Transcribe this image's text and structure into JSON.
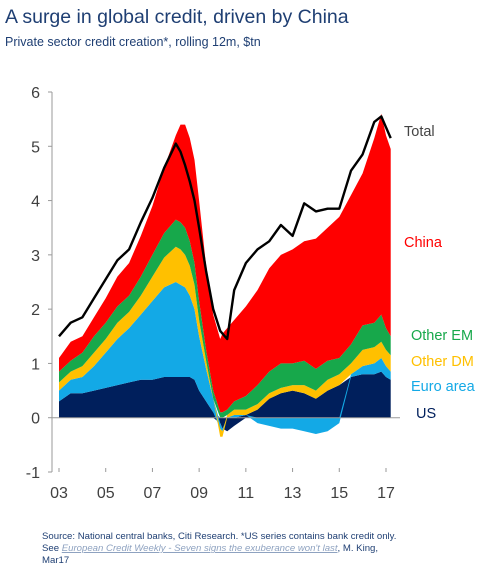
{
  "title": "A surge in global credit, driven by China",
  "subtitle": "Private sector credit creation*, rolling 12m, $tn",
  "source": {
    "line1": "Source: National central banks, Citi Research. *US series contains bank credit only.",
    "see_prefix": "See ",
    "link_text": "European Credit Weekly - Seven signs the exuberance won't last",
    "after_link": ", M. King,",
    "line3": "Mar17"
  },
  "colors": {
    "US": "#001f5c",
    "Euro area": "#13a9e6",
    "Other DM": "#ffc000",
    "Other EM": "#17a84b",
    "China": "#ff0000",
    "Total": "#000000",
    "axis_text": "#404040"
  },
  "chart_data": {
    "type": "area",
    "stacked": true,
    "title": "A surge in global credit, driven by China",
    "subtitle": "Private sector credit creation*, rolling 12m, $tn",
    "xlabel": "",
    "ylabel": "",
    "ylim": [
      -1,
      6
    ],
    "yticks": [
      -1,
      0,
      1,
      2,
      3,
      4,
      5,
      6
    ],
    "xlim": [
      2002.7,
      2017.6
    ],
    "xticks": [
      2003,
      2005,
      2007,
      2009,
      2011,
      2013,
      2015,
      2017
    ],
    "xtick_labels": [
      "03",
      "05",
      "07",
      "09",
      "11",
      "13",
      "15",
      "17"
    ],
    "grid": false,
    "legend": "right-side labels",
    "x": [
      2003.0,
      2003.5,
      2004.0,
      2004.5,
      2005.0,
      2005.5,
      2006.0,
      2006.5,
      2007.0,
      2007.5,
      2008.0,
      2008.2,
      2008.4,
      2008.6,
      2008.8,
      2009.0,
      2009.3,
      2009.6,
      2009.9,
      2010.0,
      2010.2,
      2010.5,
      2011.0,
      2011.5,
      2012.0,
      2012.5,
      2013.0,
      2013.5,
      2014.0,
      2014.5,
      2015.0,
      2015.5,
      2016.0,
      2016.5,
      2016.8,
      2017.0,
      2017.2
    ],
    "series": [
      {
        "name": "US",
        "values": [
          0.3,
          0.45,
          0.45,
          0.5,
          0.55,
          0.6,
          0.65,
          0.7,
          0.7,
          0.75,
          0.75,
          0.75,
          0.75,
          0.75,
          0.7,
          0.5,
          0.3,
          0.1,
          -0.1,
          -0.2,
          -0.25,
          -0.15,
          0.05,
          0.15,
          0.35,
          0.45,
          0.5,
          0.45,
          0.35,
          0.5,
          0.6,
          0.75,
          0.8,
          0.8,
          0.85,
          0.75,
          0.7
        ]
      },
      {
        "name": "Euro area",
        "values": [
          0.2,
          0.25,
          0.3,
          0.45,
          0.65,
          0.85,
          1.0,
          1.2,
          1.45,
          1.65,
          1.75,
          1.7,
          1.65,
          1.5,
          1.3,
          1.0,
          0.6,
          0.25,
          -0.1,
          -0.05,
          0.0,
          0.05,
          0.0,
          -0.1,
          -0.15,
          -0.2,
          -0.2,
          -0.25,
          -0.3,
          -0.25,
          -0.1,
          0.05,
          0.15,
          0.2,
          0.25,
          0.2,
          0.15
        ]
      },
      {
        "name": "Other DM",
        "values": [
          0.15,
          0.15,
          0.2,
          0.25,
          0.25,
          0.3,
          0.3,
          0.35,
          0.45,
          0.55,
          0.65,
          0.65,
          0.6,
          0.55,
          0.45,
          0.3,
          0.15,
          0.0,
          -0.15,
          -0.1,
          0.05,
          0.1,
          0.1,
          0.1,
          0.1,
          0.1,
          0.1,
          0.15,
          0.15,
          0.2,
          0.2,
          0.2,
          0.3,
          0.3,
          0.3,
          0.3,
          0.3
        ]
      },
      {
        "name": "Other EM",
        "values": [
          0.2,
          0.2,
          0.25,
          0.3,
          0.3,
          0.3,
          0.3,
          0.35,
          0.4,
          0.45,
          0.5,
          0.5,
          0.5,
          0.45,
          0.4,
          0.35,
          0.2,
          0.15,
          0.1,
          0.1,
          0.1,
          0.15,
          0.25,
          0.35,
          0.4,
          0.45,
          0.4,
          0.45,
          0.4,
          0.35,
          0.3,
          0.35,
          0.45,
          0.45,
          0.5,
          0.4,
          0.35
        ]
      },
      {
        "name": "China",
        "values": [
          0.25,
          0.35,
          0.3,
          0.35,
          0.45,
          0.55,
          0.6,
          0.75,
          0.9,
          1.2,
          1.55,
          1.8,
          1.9,
          1.9,
          1.9,
          1.85,
          1.55,
          1.4,
          1.35,
          1.45,
          1.5,
          1.5,
          1.65,
          1.75,
          1.9,
          2.0,
          2.1,
          2.2,
          2.4,
          2.45,
          2.6,
          2.75,
          2.8,
          3.4,
          3.7,
          3.55,
          3.45
        ]
      },
      {
        "name": "Total",
        "type": "line",
        "values": [
          1.5,
          1.75,
          1.85,
          2.2,
          2.55,
          2.9,
          3.1,
          3.6,
          4.05,
          4.6,
          5.05,
          4.9,
          4.65,
          4.35,
          4.0,
          3.5,
          2.7,
          2.0,
          1.6,
          1.55,
          1.45,
          2.35,
          2.85,
          3.1,
          3.25,
          3.55,
          3.35,
          3.95,
          3.8,
          3.85,
          3.85,
          4.55,
          4.85,
          5.45,
          5.55,
          5.35,
          5.15
        ]
      }
    ]
  }
}
